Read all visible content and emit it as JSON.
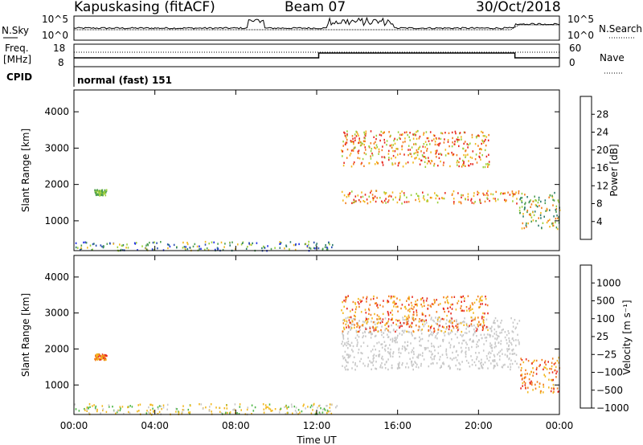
{
  "header": {
    "radar": "Kapuskasing (fitACF)",
    "beam": "Beam 07",
    "date": "30/Oct/2018"
  },
  "strip_labels": {
    "nsky": "N.Sky",
    "nsky_ticks": [
      "10^5",
      "10^0"
    ],
    "nsearch": "N.Search",
    "nsearch_ticks": [
      "10^5",
      "10^0"
    ],
    "freq": "Freq.",
    "freq_unit": "[MHz]",
    "freq_ticks": [
      "18",
      "8"
    ],
    "nave": "Nave",
    "nave_ticks": [
      "60",
      "0"
    ],
    "cpid": "CPID",
    "cpid_value": "normal (fast) 151"
  },
  "chart_data": [
    {
      "type": "heatmap",
      "name": "power",
      "ylabel": "Slant Range [km]",
      "xlabel": "",
      "y_ticks": [
        "1000",
        "2000",
        "3000",
        "4000"
      ],
      "ylim": [
        180,
        4600
      ],
      "colorbar_label": "Power [dB]",
      "colorbar_ticks": [
        "4",
        "8",
        "12",
        "16",
        "20",
        "24",
        "28"
      ],
      "colors": [
        "#1f2ee8",
        "#2a4fb0",
        "#2f7d6e",
        "#4d9e4f",
        "#9ccf3a",
        "#f2b81e",
        "#f37c1c",
        "#e7281e"
      ],
      "features": [
        {
          "start_hour": 0.0,
          "end_hour": 13.0,
          "range_min": 200,
          "range_max": 450,
          "level": "mixed-low"
        },
        {
          "start_hour": 1.0,
          "end_hour": 1.6,
          "range_min": 1720,
          "range_max": 1880,
          "level": "medium"
        },
        {
          "start_hour": 13.2,
          "end_hour": 22.0,
          "range_min": 1500,
          "range_max": 1850,
          "level": "high"
        },
        {
          "start_hour": 13.2,
          "end_hour": 20.5,
          "range_min": 2500,
          "range_max": 3500,
          "level": "high"
        },
        {
          "start_hour": 22.0,
          "end_hour": 24.0,
          "range_min": 800,
          "range_max": 1800,
          "level": "medium-high"
        }
      ]
    },
    {
      "type": "heatmap",
      "name": "velocity",
      "ylabel": "Slant Range [km]",
      "xlabel": "Time UT",
      "x_ticks": [
        "00:00",
        "04:00",
        "08:00",
        "12:00",
        "16:00",
        "20:00",
        "00:00"
      ],
      "y_ticks": [
        "1000",
        "2000",
        "3000",
        "4000"
      ],
      "ylim": [
        180,
        4600
      ],
      "colorbar_label": "Velocity [m s⁻¹]",
      "colorbar_ticks": [
        "1000",
        "500",
        "100",
        "25",
        "−25",
        "−100",
        "−500",
        "−1000"
      ],
      "colors": [
        "#1f2ee8",
        "#2a4fb0",
        "#2f7d6e",
        "#4fb847",
        "#c8c8c8",
        "#f2b81e",
        "#f37c1c",
        "#e7281e"
      ],
      "features": [
        {
          "start_hour": 0.0,
          "end_hour": 13.0,
          "range_min": 200,
          "range_max": 500,
          "level": "low-velocity"
        },
        {
          "start_hour": 1.0,
          "end_hour": 1.6,
          "range_min": 1720,
          "range_max": 1880,
          "level": "negative"
        },
        {
          "start_hour": 13.2,
          "end_hour": 22.0,
          "range_min": 1450,
          "range_max": 2900,
          "level": "ground-scatter"
        },
        {
          "start_hour": 13.2,
          "end_hour": 20.5,
          "range_min": 2500,
          "range_max": 3500,
          "level": "negative"
        },
        {
          "start_hour": 22.0,
          "end_hour": 24.0,
          "range_min": 800,
          "range_max": 1800,
          "level": "negative"
        }
      ]
    }
  ]
}
